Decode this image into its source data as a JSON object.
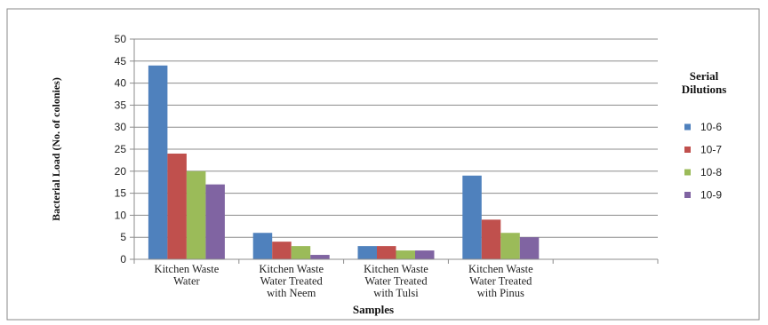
{
  "chart_data": {
    "type": "bar",
    "categories": [
      [
        "Kitchen Waste",
        "Water"
      ],
      [
        "Kitchen Waste",
        "Water Treated",
        "with Neem"
      ],
      [
        "Kitchen Waste",
        "Water Treated",
        "with Tulsi"
      ],
      [
        "Kitchen Waste",
        "Water Treated",
        "with Pinus"
      ]
    ],
    "series": [
      {
        "name": "10-6",
        "color": "#4F81BD",
        "values": [
          44,
          6,
          3,
          19
        ]
      },
      {
        "name": "10-7",
        "color": "#C0504D",
        "values": [
          24,
          4,
          3,
          9
        ]
      },
      {
        "name": "10-8",
        "color": "#9BBB59",
        "values": [
          20,
          3,
          2,
          6
        ]
      },
      {
        "name": "10-9",
        "color": "#8064A2",
        "values": [
          17,
          1,
          2,
          5
        ]
      }
    ],
    "xlabel": "Samples",
    "ylabel": "Bacterial Load (No. of colonies)",
    "ylim": [
      0,
      50
    ],
    "yticks": [
      0,
      5,
      10,
      15,
      20,
      25,
      30,
      35,
      40,
      45,
      50
    ],
    "grid": true,
    "legend_title": [
      "Serial",
      "Dilutions"
    ],
    "legend_position": "right"
  }
}
